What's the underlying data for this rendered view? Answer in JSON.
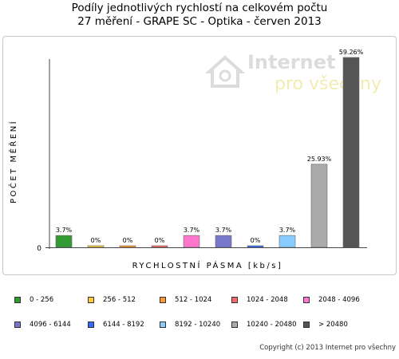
{
  "title_line1": "Podíly jednotlivých rychlostí na celkovém počtu",
  "title_line2": "27 měření - GRAPE SC - Optika - červen 2013",
  "watermark": {
    "line1": "Internet",
    "line2": "pro všechny"
  },
  "copyright": "Copyright (c) 2013 Internet pro všechny",
  "chart_data": {
    "type": "bar",
    "ylabel": "POČET MĚŘENÍ",
    "xlabel": "RYCHLOSTNÍ PÁSMA [kb/s]",
    "y_tick_label": "0",
    "grid": false,
    "legend_position": "bottom",
    "categories": [
      "0 - 256",
      "256 - 512",
      "512 - 1024",
      "1024 - 2048",
      "2048 - 4096",
      "4096 - 6144",
      "6144 - 8192",
      "8192 - 10240",
      "10240 - 20480",
      "> 20480"
    ],
    "values": [
      3.7,
      0,
      0,
      0,
      3.7,
      3.7,
      0,
      3.7,
      25.93,
      59.26
    ],
    "value_labels": [
      "3.7%",
      "0%",
      "0%",
      "0%",
      "3.7%",
      "3.7%",
      "0%",
      "3.7%",
      "25.93%",
      "59.26%"
    ],
    "colors": [
      "#339933",
      "#ffcc33",
      "#ff9933",
      "#ff6666",
      "#ff77cc",
      "#7777cc",
      "#3366ff",
      "#88ccff",
      "#aaaaaa",
      "#555555"
    ],
    "ylim": [
      0,
      59.26
    ]
  }
}
